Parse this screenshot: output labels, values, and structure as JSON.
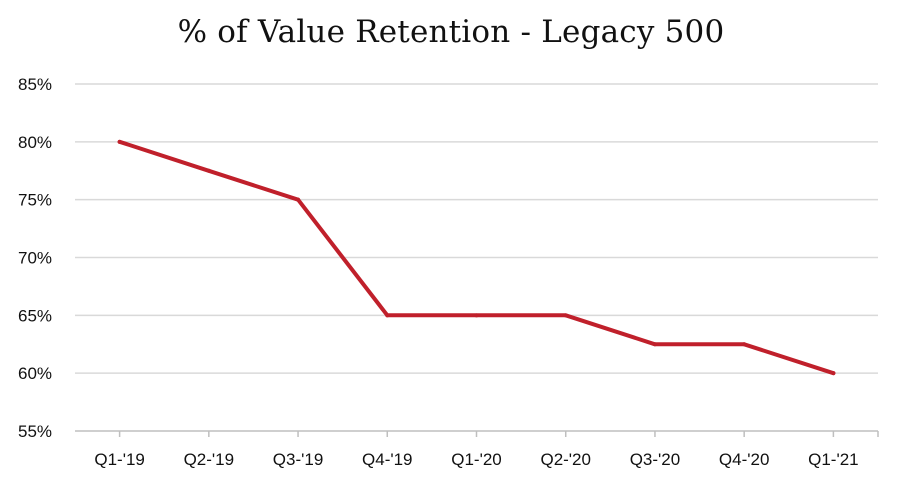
{
  "chart_data": {
    "type": "line",
    "title": "% of Value Retention - Legacy 500",
    "xlabel": "",
    "ylabel": "",
    "categories": [
      "Q1-'19",
      "Q2-'19",
      "Q3-'19",
      "Q4-'19",
      "Q1-'20",
      "Q2-'20",
      "Q3-'20",
      "Q4-'20",
      "Q1-'21"
    ],
    "series": [
      {
        "values": [
          80,
          77.5,
          75,
          65,
          65,
          65,
          62.5,
          62.5,
          60
        ],
        "color": "#c0202b"
      }
    ],
    "ylim": [
      55,
      85
    ],
    "yticks": [
      55,
      60,
      65,
      70,
      75,
      80,
      85
    ],
    "ytick_labels": [
      "55%",
      "60%",
      "65%",
      "70%",
      "75%",
      "80%",
      "85%"
    ],
    "grid": true,
    "legend": "none"
  }
}
